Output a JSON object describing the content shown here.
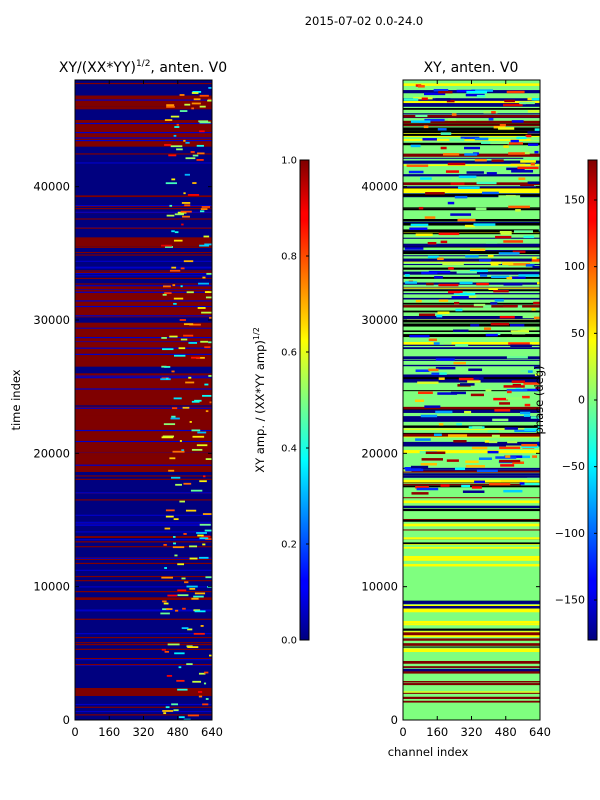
{
  "suptitle": "2015-07-02 0.0-24.0",
  "chart_data": [
    {
      "type": "heatmap",
      "title": "XY/(XX*YY)",
      "title_sup": "1/2",
      "title_suffix": ", anten. V0",
      "xlabel": "",
      "ylabel": "time index",
      "xlim": [
        0,
        640
      ],
      "ylim": [
        0,
        48000
      ],
      "x_ticks": [
        "0",
        "160",
        "320",
        "480",
        "640"
      ],
      "y_ticks": [
        "0",
        "10000",
        "20000",
        "30000",
        "40000"
      ],
      "colorbar": {
        "label": "XY amp. / (XX*YY amp)",
        "label_sup": "1/2",
        "range": [
          0,
          1
        ],
        "ticks": [
          "0.0",
          "0.2",
          "0.4",
          "0.6",
          "0.8",
          "1.0"
        ]
      }
    },
    {
      "type": "heatmap",
      "title": "XY, anten. V0",
      "xlabel": "channel index",
      "ylabel": "",
      "xlim": [
        0,
        640
      ],
      "ylim": [
        0,
        48000
      ],
      "x_ticks": [
        "0",
        "160",
        "320",
        "480",
        "640"
      ],
      "y_ticks": [
        "0",
        "10000",
        "20000",
        "30000",
        "40000"
      ],
      "colorbar": {
        "label": "phase (deg)",
        "range": [
          -180,
          180
        ],
        "ticks": [
          "−150",
          "−100",
          "−50",
          "0",
          "50",
          "100",
          "150"
        ]
      }
    }
  ]
}
